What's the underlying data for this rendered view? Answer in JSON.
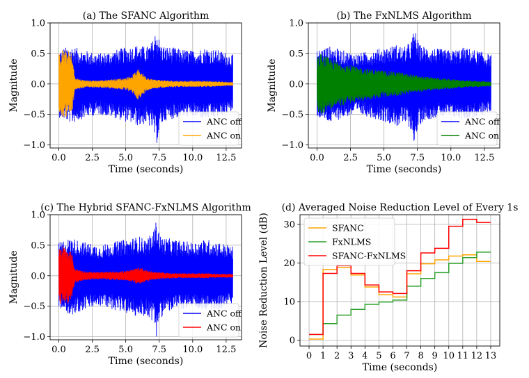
{
  "chart_data": [
    {
      "type": "line",
      "title": "(a) The SFANC Algorithm",
      "xlabel": "Time (seconds)",
      "ylabel": "Magnitude",
      "xlim": [
        -0.65,
        13.65
      ],
      "ylim": [
        -1.05,
        1.0
      ],
      "xticks": [
        "0.0",
        "2.5",
        "5.0",
        "7.5",
        "10.0",
        "12.5"
      ],
      "xtick_values": [
        0,
        2.5,
        5,
        7.5,
        10,
        12.5
      ],
      "yticks": [
        "−1.0",
        "−0.5",
        "0.0",
        "0.5",
        "1.0"
      ],
      "ytick_values": [
        -1,
        -0.5,
        0,
        0.5,
        1
      ],
      "grid": true,
      "legend_position": "lower-right",
      "series": [
        {
          "name": "ANC off",
          "color": "#0000ff",
          "envelope_t": [
            0,
            0.5,
            1,
            1.5,
            2,
            3,
            4,
            5,
            5.5,
            6,
            6.5,
            7,
            7.3,
            7.6,
            8,
            9,
            10,
            11,
            12,
            13
          ],
          "envelope_max": [
            0.55,
            0.6,
            0.62,
            0.58,
            0.55,
            0.5,
            0.55,
            0.6,
            0.62,
            0.65,
            0.6,
            0.7,
            0.92,
            0.65,
            0.62,
            0.58,
            0.55,
            0.6,
            0.55,
            0.48
          ],
          "envelope_min": [
            -0.55,
            -0.6,
            -0.65,
            -0.6,
            -0.55,
            -0.5,
            -0.55,
            -0.62,
            -0.65,
            -0.7,
            -0.65,
            -0.75,
            -1.0,
            -0.7,
            -0.6,
            -0.55,
            -0.55,
            -0.58,
            -0.55,
            -0.45
          ]
        },
        {
          "name": "ANC on",
          "color": "#ffa500",
          "envelope_t": [
            0,
            0.3,
            0.7,
            1,
            1.2,
            2,
            3,
            4,
            5,
            5.5,
            6,
            6.5,
            7,
            8,
            9,
            10,
            11,
            12,
            13
          ],
          "envelope_max": [
            0.5,
            0.58,
            0.55,
            0.5,
            0.1,
            0.06,
            0.06,
            0.08,
            0.1,
            0.15,
            0.25,
            0.12,
            0.08,
            0.06,
            0.05,
            0.05,
            0.05,
            0.04,
            0.03
          ],
          "envelope_min": [
            -0.5,
            -0.55,
            -0.55,
            -0.5,
            -0.1,
            -0.06,
            -0.06,
            -0.08,
            -0.1,
            -0.15,
            -0.28,
            -0.12,
            -0.08,
            -0.06,
            -0.05,
            -0.05,
            -0.05,
            -0.04,
            -0.03
          ]
        }
      ]
    },
    {
      "type": "line",
      "title": "(b) The FxNLMS Algorithm",
      "xlabel": "Time (seconds)",
      "ylabel": "Magnitude",
      "xlim": [
        -0.65,
        13.65
      ],
      "ylim": [
        -1.05,
        1.0
      ],
      "xticks": [
        "0.0",
        "2.5",
        "5.0",
        "7.5",
        "10.0",
        "12.5"
      ],
      "xtick_values": [
        0,
        2.5,
        5,
        7.5,
        10,
        12.5
      ],
      "yticks": [
        "−1.0",
        "−0.5",
        "0.0",
        "0.5",
        "1.0"
      ],
      "ytick_values": [
        -1,
        -0.5,
        0,
        0.5,
        1
      ],
      "grid": true,
      "legend_position": "lower-right",
      "series": [
        {
          "name": "ANC off",
          "color": "#0000ff",
          "envelope_t": [
            0,
            0.5,
            1,
            1.5,
            2,
            3,
            4,
            5,
            5.5,
            6,
            6.5,
            7,
            7.3,
            7.6,
            8,
            9,
            10,
            11,
            12,
            13
          ],
          "envelope_max": [
            0.55,
            0.6,
            0.62,
            0.58,
            0.55,
            0.5,
            0.55,
            0.6,
            0.62,
            0.65,
            0.6,
            0.7,
            0.92,
            0.65,
            0.62,
            0.58,
            0.55,
            0.6,
            0.55,
            0.48
          ],
          "envelope_min": [
            -0.55,
            -0.6,
            -0.65,
            -0.6,
            -0.55,
            -0.5,
            -0.55,
            -0.62,
            -0.65,
            -0.7,
            -0.65,
            -0.75,
            -1.0,
            -0.7,
            -0.6,
            -0.55,
            -0.55,
            -0.58,
            -0.55,
            -0.45
          ]
        },
        {
          "name": "ANC on",
          "color": "#008000",
          "envelope_t": [
            0,
            0.3,
            1,
            2,
            3,
            4,
            5,
            6,
            7,
            8,
            9,
            10,
            11,
            12,
            13
          ],
          "envelope_max": [
            0.45,
            0.5,
            0.42,
            0.35,
            0.28,
            0.25,
            0.22,
            0.2,
            0.16,
            0.12,
            0.1,
            0.08,
            0.06,
            0.05,
            0.04
          ],
          "envelope_min": [
            -0.45,
            -0.5,
            -0.42,
            -0.35,
            -0.3,
            -0.26,
            -0.22,
            -0.2,
            -0.16,
            -0.12,
            -0.1,
            -0.08,
            -0.06,
            -0.05,
            -0.04
          ]
        }
      ]
    },
    {
      "type": "line",
      "title": "(c) The Hybrid SFANC-FxNLMS Algorithm",
      "xlabel": "Time (seconds)",
      "ylabel": "Magnitude",
      "xlim": [
        -0.65,
        13.65
      ],
      "ylim": [
        -1.05,
        1.0
      ],
      "xticks": [
        "0.0",
        "2.5",
        "5.0",
        "7.5",
        "10.0",
        "12.5"
      ],
      "xtick_values": [
        0,
        2.5,
        5,
        7.5,
        10,
        12.5
      ],
      "yticks": [
        "−1.0",
        "−0.5",
        "0.0",
        "0.5",
        "1.0"
      ],
      "ytick_values": [
        -1,
        -0.5,
        0,
        0.5,
        1
      ],
      "grid": true,
      "legend_position": "lower-right",
      "series": [
        {
          "name": "ANC off",
          "color": "#0000ff",
          "envelope_t": [
            0,
            0.5,
            1,
            1.5,
            2,
            3,
            4,
            5,
            5.5,
            6,
            6.5,
            7,
            7.3,
            7.6,
            8,
            9,
            10,
            11,
            12,
            13
          ],
          "envelope_max": [
            0.55,
            0.6,
            0.62,
            0.58,
            0.55,
            0.5,
            0.55,
            0.6,
            0.62,
            0.65,
            0.6,
            0.7,
            0.92,
            0.65,
            0.62,
            0.58,
            0.55,
            0.6,
            0.55,
            0.48
          ],
          "envelope_min": [
            -0.55,
            -0.6,
            -0.65,
            -0.6,
            -0.55,
            -0.5,
            -0.55,
            -0.62,
            -0.65,
            -0.7,
            -0.65,
            -0.75,
            -1.0,
            -0.7,
            -0.6,
            -0.55,
            -0.55,
            -0.58,
            -0.55,
            -0.45
          ]
        },
        {
          "name": "ANC on",
          "color": "#ff0000",
          "envelope_t": [
            0,
            0.3,
            0.7,
            1,
            1.2,
            2,
            3,
            4,
            5,
            5.5,
            6,
            6.5,
            7,
            8,
            9,
            10,
            11,
            12,
            13
          ],
          "envelope_max": [
            0.45,
            0.5,
            0.45,
            0.35,
            0.12,
            0.07,
            0.06,
            0.07,
            0.08,
            0.1,
            0.15,
            0.1,
            0.07,
            0.05,
            0.04,
            0.04,
            0.04,
            0.03,
            0.03
          ],
          "envelope_min": [
            -0.45,
            -0.5,
            -0.45,
            -0.35,
            -0.12,
            -0.07,
            -0.06,
            -0.07,
            -0.08,
            -0.1,
            -0.15,
            -0.1,
            -0.07,
            -0.05,
            -0.04,
            -0.04,
            -0.04,
            -0.03,
            -0.03
          ]
        }
      ]
    },
    {
      "type": "line",
      "step": "post",
      "title": "(d) Averaged Noise Reduction Level of Every 1s",
      "xlabel": "Time (seconds)",
      "ylabel": "Noise Reduction Level (dB)",
      "xlim": [
        -0.65,
        13.65
      ],
      "ylim": [
        -1.5,
        32.5
      ],
      "xticks": [
        "0",
        "1",
        "2",
        "3",
        "4",
        "5",
        "6",
        "7",
        "8",
        "9",
        "10",
        "11",
        "12",
        "13"
      ],
      "xtick_values": [
        0,
        1,
        2,
        3,
        4,
        5,
        6,
        7,
        8,
        9,
        10,
        11,
        12,
        13
      ],
      "yticks": [
        "0",
        "10",
        "20",
        "30"
      ],
      "ytick_values": [
        0,
        10,
        20,
        30
      ],
      "grid": true,
      "legend_position": "upper-left",
      "x": [
        0,
        1,
        2,
        3,
        4,
        5,
        6,
        7,
        8,
        9,
        10,
        11,
        12,
        13
      ],
      "series": [
        {
          "name": "SFANC",
          "color": "#ffa500",
          "values": [
            0.3,
            18.3,
            18.8,
            16.9,
            13.8,
            11.8,
            11.2,
            17.2,
            19.8,
            20.8,
            21.8,
            22.1,
            20.4,
            20.4
          ]
        },
        {
          "name": "FxNLMS",
          "color": "#2ca02c",
          "values": [
            1.5,
            4.3,
            6.5,
            8.0,
            9.3,
            9.9,
            10.4,
            14.0,
            16.0,
            17.5,
            19.9,
            21.4,
            22.8,
            22.8
          ]
        },
        {
          "name": "SFANC-FxNLMS",
          "color": "#ff0000",
          "values": [
            1.5,
            17.3,
            19.3,
            17.3,
            14.3,
            12.5,
            12.1,
            18.0,
            22.6,
            23.8,
            29.5,
            31.3,
            30.5,
            30.5
          ]
        }
      ]
    }
  ]
}
